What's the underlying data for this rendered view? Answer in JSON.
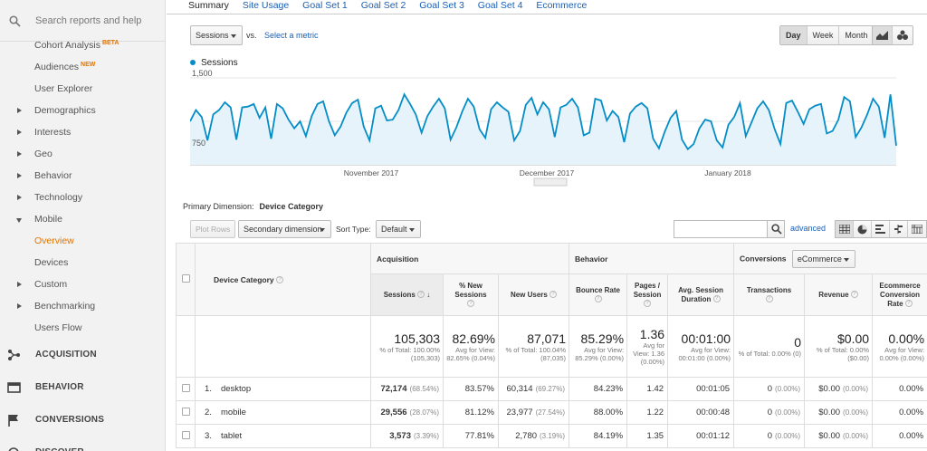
{
  "sidebar": {
    "search_placeholder": "Search reports and help",
    "items": [
      {
        "label": "Cohort Analysis",
        "badge": "BETA"
      },
      {
        "label": "Audiences",
        "badge": "NEW"
      },
      {
        "label": "User Explorer"
      },
      {
        "label": "Demographics"
      },
      {
        "label": "Interests"
      },
      {
        "label": "Geo"
      },
      {
        "label": "Behavior"
      },
      {
        "label": "Technology"
      },
      {
        "label": "Mobile"
      },
      {
        "label": "Overview"
      },
      {
        "label": "Devices"
      },
      {
        "label": "Custom"
      },
      {
        "label": "Benchmarking"
      },
      {
        "label": "Users Flow"
      }
    ],
    "sections": [
      {
        "label": "ACQUISITION"
      },
      {
        "label": "BEHAVIOR"
      },
      {
        "label": "CONVERSIONS"
      },
      {
        "label": "DISCOVER"
      }
    ]
  },
  "tabs": [
    "Summary",
    "Site Usage",
    "Goal Set 1",
    "Goal Set 2",
    "Goal Set 3",
    "Goal Set 4",
    "Ecommerce"
  ],
  "controls": {
    "metric": "Sessions",
    "vs": "vs.",
    "select_metric": "Select a metric",
    "periods": [
      "Day",
      "Week",
      "Month"
    ]
  },
  "chart_data": {
    "type": "line",
    "series": [
      {
        "name": "Sessions",
        "values": [
          1000,
          1130,
          1050,
          780,
          1080,
          1130,
          1220,
          1160,
          790,
          1160,
          1170,
          1200,
          1040,
          1160,
          800,
          1200,
          1150,
          1020,
          920,
          1000,
          830,
          1060,
          1200,
          1230,
          1000,
          840,
          940,
          1100,
          1210,
          1250,
          940,
          780,
          1150,
          1180,
          1010,
          1020,
          1130,
          1310,
          1200,
          1080,
          870,
          1060,
          1170,
          1260,
          1150,
          790,
          930,
          1110,
          1260,
          1170,
          910,
          810,
          1140,
          1220,
          1160,
          1110,
          780,
          890,
          1190,
          1270,
          1080,
          1220,
          1140,
          820,
          1160,
          1190,
          1260,
          1160,
          840,
          870,
          1260,
          1240,
          1010,
          1120,
          1050,
          760,
          1090,
          1170,
          1210,
          1150,
          800,
          690,
          880,
          1040,
          1120,
          790,
          680,
          740,
          920,
          1020,
          1000,
          780,
          700,
          960,
          1050,
          1210,
          830,
          990,
          1150,
          1230,
          1130,
          910,
          740,
          1210,
          1240,
          1110,
          970,
          1140,
          1180,
          1200,
          860,
          890,
          1020,
          1280,
          1230,
          820,
          930,
          1080,
          1260,
          1170,
          810,
          1310,
          720
        ],
        "color": "#058dc7"
      }
    ],
    "y_ticks": [
      "1,500",
      "750"
    ],
    "ylim": [
      500,
      1500
    ],
    "x_labels": [
      "November 2017",
      "December 2017",
      "January 2018"
    ]
  },
  "primary_dimension": {
    "label": "Primary Dimension:",
    "value": "Device Category"
  },
  "table_controls": {
    "plot_rows": "Plot Rows",
    "secondary": "Secondary dimension",
    "sort_type_label": "Sort Type:",
    "sort_type": "Default",
    "advanced": "advanced"
  },
  "table": {
    "dim_header": "Device Category",
    "groups": {
      "acquisition": "Acquisition",
      "behavior": "Behavior",
      "conversions": "Conversions",
      "ecommerce": "eCommerce"
    },
    "columns": [
      "Sessions",
      "% New Sessions",
      "New Users",
      "Bounce Rate",
      "Pages / Session",
      "Avg. Session Duration",
      "Transactions",
      "Revenue",
      "Ecommerce Conversion Rate"
    ],
    "totals": [
      {
        "big": "105,303",
        "sm": "% of Total: 100.00% (105,303)"
      },
      {
        "big": "82.69%",
        "sm": "Avg for View: 82.65% (0.04%)"
      },
      {
        "big": "87,071",
        "sm": "% of Total: 100.04% (87,035)"
      },
      {
        "big": "85.29%",
        "sm": "Avg for View: 85.29% (0.00%)"
      },
      {
        "big": "1.36",
        "sm": "Avg for View: 1.36 (0.00%)"
      },
      {
        "big": "00:01:00",
        "sm": "Avg for View: 00:01:00 (0.00%)"
      },
      {
        "big": "0",
        "sm": "% of Total: 0.00% (0)"
      },
      {
        "big": "$0.00",
        "sm": "% of Total: 0.00% ($0.00)"
      },
      {
        "big": "0.00%",
        "sm": "Avg for View: 0.00% (0.00%)"
      }
    ],
    "rows": [
      {
        "idx": "1.",
        "name": "desktop",
        "sessions": "72,174",
        "sessions_pct": "(68.54%)",
        "new_sess": "83.57%",
        "new_users": "60,314",
        "new_users_pct": "(69.27%)",
        "bounce": "84.23%",
        "pages": "1.42",
        "dur": "00:01:05",
        "trans": "0",
        "trans_pct": "(0.00%)",
        "rev": "$0.00",
        "rev_pct": "(0.00%)",
        "conv": "0.00%"
      },
      {
        "idx": "2.",
        "name": "mobile",
        "sessions": "29,556",
        "sessions_pct": "(28.07%)",
        "new_sess": "81.12%",
        "new_users": "23,977",
        "new_users_pct": "(27.54%)",
        "bounce": "88.00%",
        "pages": "1.22",
        "dur": "00:00:48",
        "trans": "0",
        "trans_pct": "(0.00%)",
        "rev": "$0.00",
        "rev_pct": "(0.00%)",
        "conv": "0.00%"
      },
      {
        "idx": "3.",
        "name": "tablet",
        "sessions": "3,573",
        "sessions_pct": "(3.39%)",
        "new_sess": "77.81%",
        "new_users": "2,780",
        "new_users_pct": "(3.19%)",
        "bounce": "84.19%",
        "pages": "1.35",
        "dur": "00:01:12",
        "trans": "0",
        "trans_pct": "(0.00%)",
        "rev": "$0.00",
        "rev_pct": "(0.00%)",
        "conv": "0.00%"
      }
    ]
  }
}
